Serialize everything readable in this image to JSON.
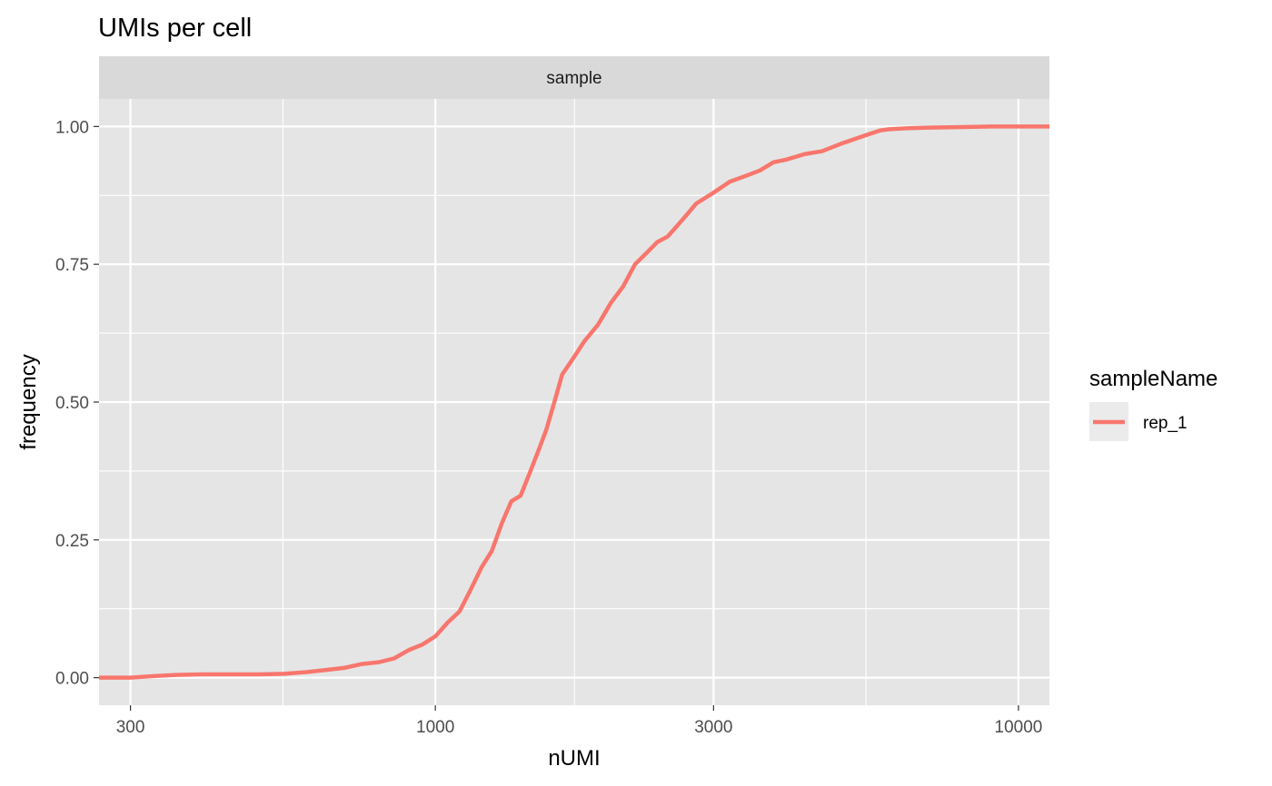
{
  "chart_data": {
    "type": "line",
    "title": "UMIs per cell",
    "facet_label": "sample",
    "xlabel": "nUMI",
    "ylabel": "frequency",
    "x_scale": "log10",
    "xlim": [
      265,
      11300
    ],
    "ylim": [
      -0.05,
      1.05
    ],
    "x_ticks": [
      300,
      1000,
      3000,
      10000
    ],
    "x_tick_labels": [
      "300",
      "1000",
      "3000",
      "10000"
    ],
    "y_ticks": [
      0,
      0.25,
      0.5,
      0.75,
      1.0
    ],
    "y_tick_labels": [
      "0.00",
      "0.25",
      "0.50",
      "0.75",
      "1.00"
    ],
    "grid": true,
    "legend": {
      "title": "sampleName",
      "position": "right"
    },
    "colors": {
      "panel": "#e5e5e5",
      "strip": "#d9d9d9",
      "grid": "#ffffff",
      "series": "#f8766d"
    },
    "series": [
      {
        "name": "rep_1",
        "color": "#f8766d",
        "x": [
          265,
          300,
          330,
          360,
          400,
          450,
          500,
          550,
          600,
          650,
          700,
          750,
          800,
          850,
          900,
          950,
          1000,
          1050,
          1100,
          1150,
          1200,
          1250,
          1300,
          1350,
          1400,
          1450,
          1500,
          1550,
          1600,
          1650,
          1700,
          1750,
          1800,
          1900,
          2000,
          2100,
          2200,
          2300,
          2400,
          2500,
          2600,
          2700,
          2800,
          3000,
          3200,
          3400,
          3600,
          3800,
          4000,
          4300,
          4600,
          5000,
          5500,
          5800,
          6000,
          6500,
          7000,
          8000,
          9000,
          10000,
          11300
        ],
        "y": [
          0.0,
          0.0,
          0.003,
          0.005,
          0.006,
          0.006,
          0.006,
          0.007,
          0.01,
          0.014,
          0.018,
          0.025,
          0.028,
          0.035,
          0.05,
          0.06,
          0.075,
          0.1,
          0.12,
          0.16,
          0.2,
          0.23,
          0.28,
          0.32,
          0.33,
          0.37,
          0.41,
          0.45,
          0.5,
          0.55,
          0.57,
          0.59,
          0.61,
          0.64,
          0.68,
          0.71,
          0.75,
          0.77,
          0.79,
          0.8,
          0.82,
          0.84,
          0.86,
          0.88,
          0.9,
          0.91,
          0.92,
          0.935,
          0.94,
          0.95,
          0.955,
          0.97,
          0.985,
          0.993,
          0.995,
          0.997,
          0.998,
          0.999,
          1.0,
          1.0,
          1.0
        ]
      }
    ]
  }
}
